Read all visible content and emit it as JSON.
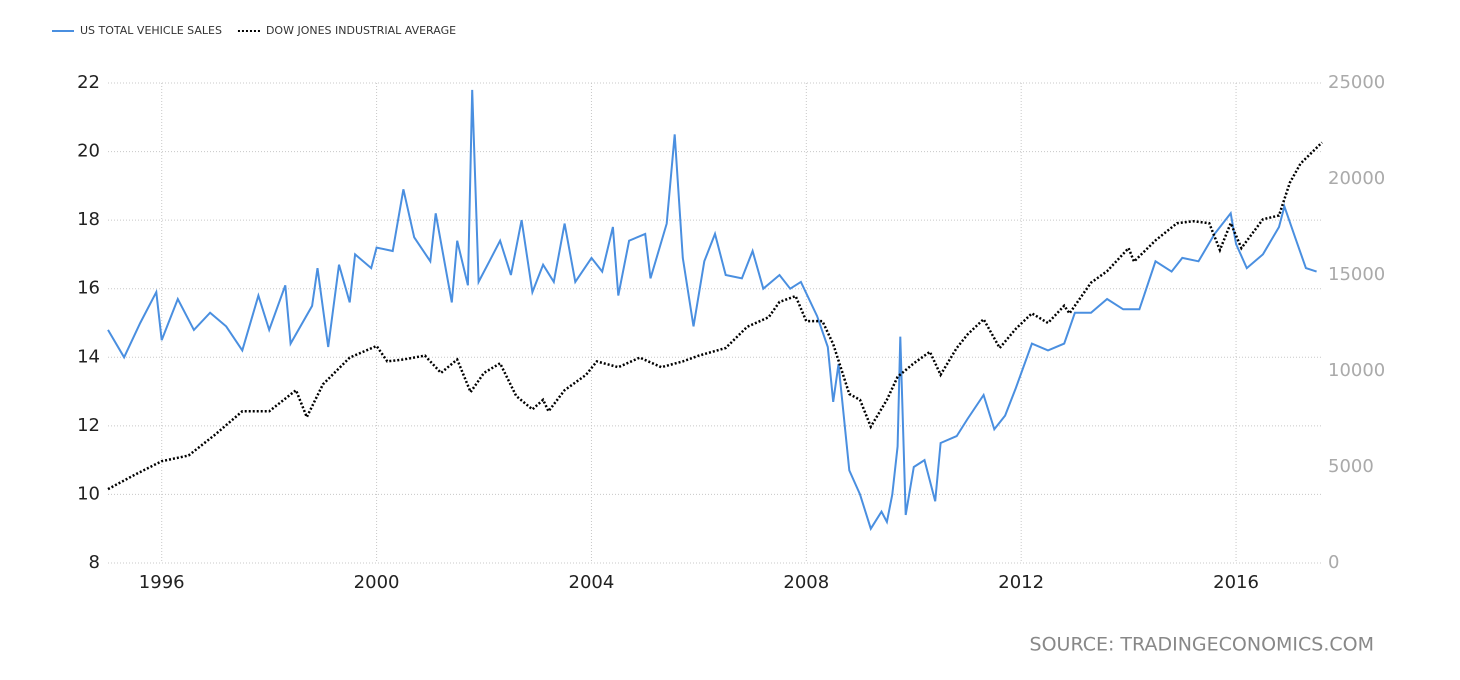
{
  "chart_data": {
    "type": "line",
    "source": "SOURCE: TRADINGECONOMICS.COM",
    "xlim": [
      1995,
      2017.6
    ],
    "xticks": [
      1996,
      2000,
      2004,
      2008,
      2012,
      2016
    ],
    "ylim": [
      8,
      22
    ],
    "yticks": [
      8,
      10,
      12,
      14,
      16,
      18,
      20,
      22
    ],
    "y2lim": [
      0,
      25000
    ],
    "y2ticks": [
      0,
      5000,
      10000,
      15000,
      20000,
      25000
    ],
    "grid": true,
    "legend": "top-left",
    "series": [
      {
        "name": "US TOTAL VEHICLE SALES",
        "color": "#4a8fe0",
        "style": "solid",
        "x": [
          1995.0,
          1995.3,
          1995.6,
          1995.9,
          1996.0,
          1996.3,
          1996.6,
          1996.9,
          1997.2,
          1997.5,
          1997.8,
          1998.0,
          1998.3,
          1998.4,
          1998.8,
          1998.9,
          1999.1,
          1999.3,
          1999.5,
          1999.6,
          1999.9,
          2000.0,
          2000.3,
          2000.5,
          2000.7,
          2001.0,
          2001.1,
          2001.4,
          2001.5,
          2001.7,
          2001.78,
          2001.9,
          2002.1,
          2002.3,
          2002.5,
          2002.7,
          2002.9,
          2003.1,
          2003.3,
          2003.5,
          2003.7,
          2004.0,
          2004.2,
          2004.4,
          2004.5,
          2004.7,
          2005.0,
          2005.1,
          2005.4,
          2005.55,
          2005.7,
          2005.9,
          2006.1,
          2006.3,
          2006.5,
          2006.8,
          2007.0,
          2007.2,
          2007.5,
          2007.7,
          2007.9,
          2008.2,
          2008.4,
          2008.5,
          2008.6,
          2008.8,
          2009.0,
          2009.2,
          2009.4,
          2009.5,
          2009.6,
          2009.7,
          2009.75,
          2009.85,
          2010.0,
          2010.2,
          2010.4,
          2010.5,
          2010.8,
          2011.0,
          2011.3,
          2011.5,
          2011.7,
          2011.9,
          2012.2,
          2012.5,
          2012.8,
          2013.0,
          2013.3,
          2013.6,
          2013.9,
          2014.2,
          2014.5,
          2014.8,
          2015.0,
          2015.3,
          2015.6,
          2015.9,
          2016.0,
          2016.2,
          2016.5,
          2016.8,
          2016.9,
          2017.1,
          2017.3,
          2017.5
        ],
        "values": [
          14.8,
          14.0,
          15.0,
          15.9,
          14.5,
          15.7,
          14.8,
          15.3,
          14.9,
          14.2,
          15.8,
          14.8,
          16.1,
          14.4,
          15.5,
          16.6,
          14.3,
          16.7,
          15.6,
          17.0,
          16.6,
          17.2,
          17.1,
          18.9,
          17.5,
          16.8,
          18.2,
          15.6,
          17.4,
          16.1,
          21.8,
          16.2,
          16.8,
          17.4,
          16.4,
          18.0,
          15.9,
          16.7,
          16.2,
          17.9,
          16.2,
          16.9,
          16.5,
          17.8,
          15.8,
          17.4,
          17.6,
          16.3,
          17.9,
          20.5,
          16.9,
          14.9,
          16.8,
          17.6,
          16.4,
          16.3,
          17.1,
          16.0,
          16.4,
          16.0,
          16.2,
          15.2,
          14.3,
          12.7,
          13.8,
          10.7,
          10.0,
          9.0,
          9.5,
          9.2,
          10.0,
          11.4,
          14.6,
          9.4,
          10.8,
          11.0,
          9.8,
          11.5,
          11.7,
          12.2,
          12.9,
          11.9,
          12.3,
          13.1,
          14.4,
          14.2,
          14.4,
          15.3,
          15.3,
          15.7,
          15.4,
          15.4,
          16.8,
          16.5,
          16.9,
          16.8,
          17.6,
          18.2,
          17.3,
          16.6,
          17.0,
          17.8,
          18.4,
          17.5,
          16.6,
          16.5
        ]
      },
      {
        "name": "DOW JONES INDUSTRIAL AVERAGE",
        "color": "#000000",
        "style": "dotted",
        "axis": "y2",
        "x": [
          1995.0,
          1995.5,
          1996.0,
          1996.5,
          1997.0,
          1997.5,
          1998.0,
          1998.5,
          1998.7,
          1999.0,
          1999.5,
          2000.0,
          2000.2,
          2000.5,
          2000.9,
          2001.2,
          2001.5,
          2001.75,
          2002.0,
          2002.3,
          2002.6,
          2002.9,
          2003.1,
          2003.2,
          2003.5,
          2003.9,
          2004.1,
          2004.5,
          2004.9,
          2005.3,
          2005.7,
          2006.0,
          2006.5,
          2006.9,
          2007.3,
          2007.5,
          2007.8,
          2008.0,
          2008.3,
          2008.5,
          2008.8,
          2009.0,
          2009.2,
          2009.5,
          2009.7,
          2010.0,
          2010.3,
          2010.5,
          2010.8,
          2011.0,
          2011.3,
          2011.6,
          2011.9,
          2012.2,
          2012.5,
          2012.8,
          2012.9,
          2013.3,
          2013.6,
          2014.0,
          2014.1,
          2014.5,
          2014.9,
          2015.2,
          2015.5,
          2015.7,
          2015.9,
          2016.1,
          2016.5,
          2016.8,
          2017.0,
          2017.2,
          2017.6
        ],
        "values": [
          3850,
          4600,
          5300,
          5600,
          6700,
          7900,
          7900,
          9000,
          7600,
          9300,
          10700,
          11300,
          10500,
          10600,
          10800,
          9900,
          10600,
          8900,
          9900,
          10400,
          8700,
          8000,
          8500,
          7900,
          9000,
          9800,
          10500,
          10200,
          10700,
          10200,
          10500,
          10800,
          11200,
          12300,
          12800,
          13600,
          13900,
          12600,
          12600,
          11400,
          8800,
          8500,
          7100,
          8500,
          9700,
          10400,
          11000,
          9800,
          11200,
          11900,
          12700,
          11200,
          12200,
          13000,
          12500,
          13400,
          13000,
          14600,
          15200,
          16400,
          15700,
          16800,
          17700,
          17800,
          17700,
          16300,
          17700,
          16400,
          17900,
          18100,
          19800,
          20800,
          21900
        ]
      }
    ]
  }
}
